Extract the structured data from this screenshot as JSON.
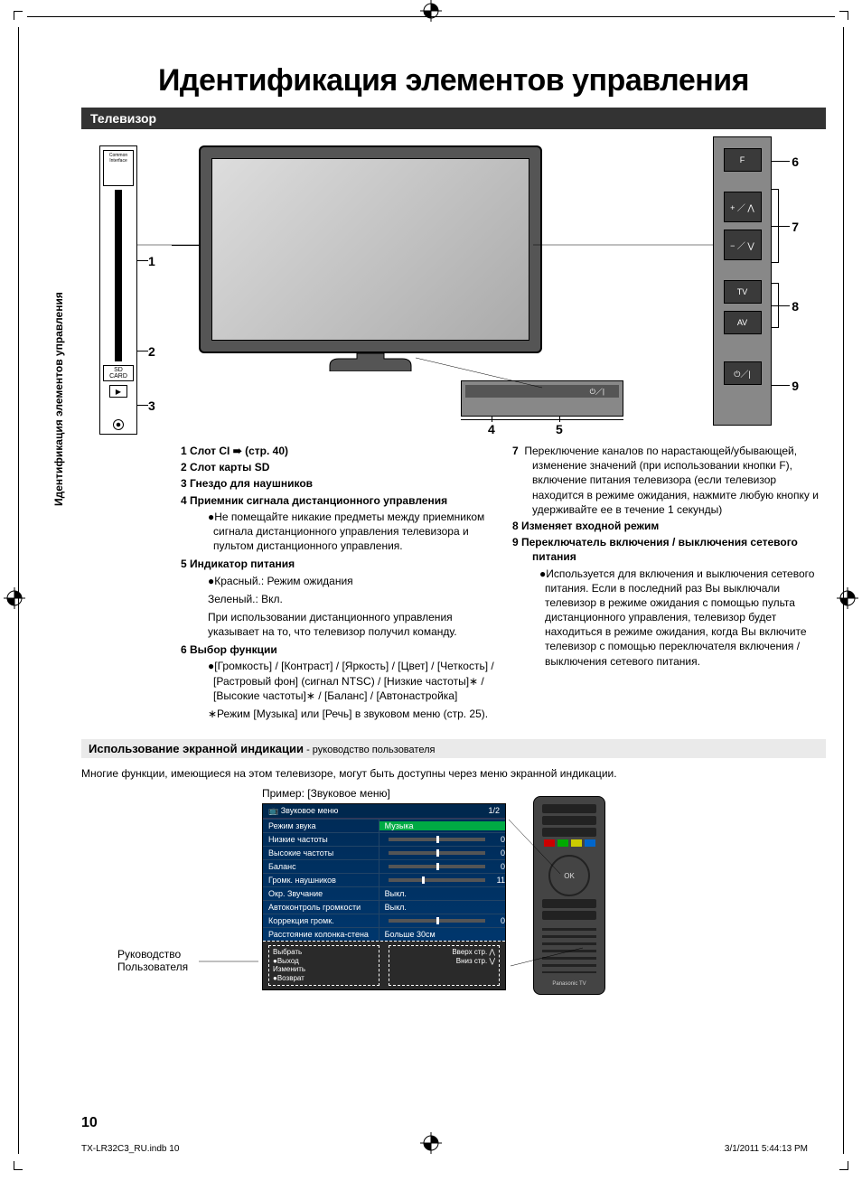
{
  "page": {
    "title": "Идентификация элементов управления",
    "section_bar": "Телевизор",
    "side_label": "Идентификация элементов управления",
    "page_number": "10",
    "footer_left": "TX-LR32C3_RU.indb   10",
    "footer_right": "3/1/2011   5:44:13 PM"
  },
  "diagram": {
    "ci_label": "Common Interface",
    "sd_label": "SD\nCARD",
    "labels": {
      "n1": "1",
      "n2": "2",
      "n3": "3",
      "n4": "4",
      "n5": "5",
      "n6": "6",
      "n7": "7",
      "n8": "8",
      "n9": "9"
    },
    "side_buttons": {
      "f": "F",
      "up": "+ ／ ⋀",
      "down": "− ／ ⋁",
      "tv": "TV",
      "av": "AV",
      "power": "⏻／|"
    },
    "bottom_power": "⏻／|"
  },
  "items_left": {
    "i1": "1  Слот CI ➠ (стр. 40)",
    "i2": "2  Слот карты SD",
    "i3": "3  Гнездо для наушников",
    "i4": "4  Приемник сигнала дистанционного управления",
    "i4b": "●Не помещайте никакие предметы между приемником сигнала дистанционного управления телевизора и пультом дистанционного управления.",
    "i5": "5  Индикатор питания",
    "i5b1": "●Красный.: Режим ожидания",
    "i5b2": "Зеленый.: Вкл.",
    "i5b3": "При использовании дистанционного управления указывает на то, что телевизор получил команду.",
    "i6": "6  Выбор функции",
    "i6b1": "●[Громкость] / [Контраст] / [Яркость] / [Цвет] / [Четкость] / [Растровый фон] (сигнал NTSC) / [Низкие частоты]∗ / [Высокие частоты]∗ / [Баланс] / [Автонастройка]",
    "i6b2": "∗Режим [Музыка] или [Речь] в звуковом меню (стр. 25)."
  },
  "items_right": {
    "i7": "7  Переключение каналов по нарастающей/убывающей, изменение значений (при использовании кнопки F), включение питания телевизора (если телевизор находится в режиме ожидания, нажмите любую кнопку и удерживайте ее в течение 1 секунды)",
    "i8": "8  Изменяет входной режим",
    "i9": "9  Переключатель включения / выключения сетевого питания",
    "i9b": "●Используется для включения и выключения сетевого питания. Если в последний раз Вы выключали телевизор в режиме ожидания с помощью пульта дистанционного управления, телевизор будет находиться в режиме ожидания, когда Вы включите телевизор с помощью переключателя включения / выключения сетевого питания."
  },
  "osd": {
    "heading_bold": "Использование экранной индикации",
    "heading_small": " - руководство пользователя",
    "intro": "Многие функции, имеющиеся на этом телевизоре, могут быть доступны через меню экранной индикации.",
    "example": "Пример: [Звуковое меню]",
    "menu_title": "Звуковое меню",
    "menu_page": "1/2",
    "rows": [
      {
        "l": "Режим звука",
        "r": "Музыка",
        "active": true
      },
      {
        "l": "Низкие частоты",
        "r": "0",
        "slider": 50
      },
      {
        "l": "Высокие частоты",
        "r": "0",
        "slider": 50
      },
      {
        "l": "Баланс",
        "r": "0",
        "slider": 50
      },
      {
        "l": "Громк. наушников",
        "r": "11",
        "slider": 35
      },
      {
        "l": "Окр. Звучание",
        "r": "Выкл."
      },
      {
        "l": "Автоконтроль громкости",
        "r": "Выкл."
      },
      {
        "l": "Коррекция громк.",
        "r": "0",
        "slider": 50
      },
      {
        "l": "Расстояние колонка-стена",
        "r": "Больше 30см"
      }
    ],
    "hint_left": "Выбрать\n●Выход\n    Изменить\n●Возврат",
    "hint_right": "Вверх стр. ⋀\nВниз стр. ⋁",
    "guide_label": "Руководство\nПользователя"
  }
}
